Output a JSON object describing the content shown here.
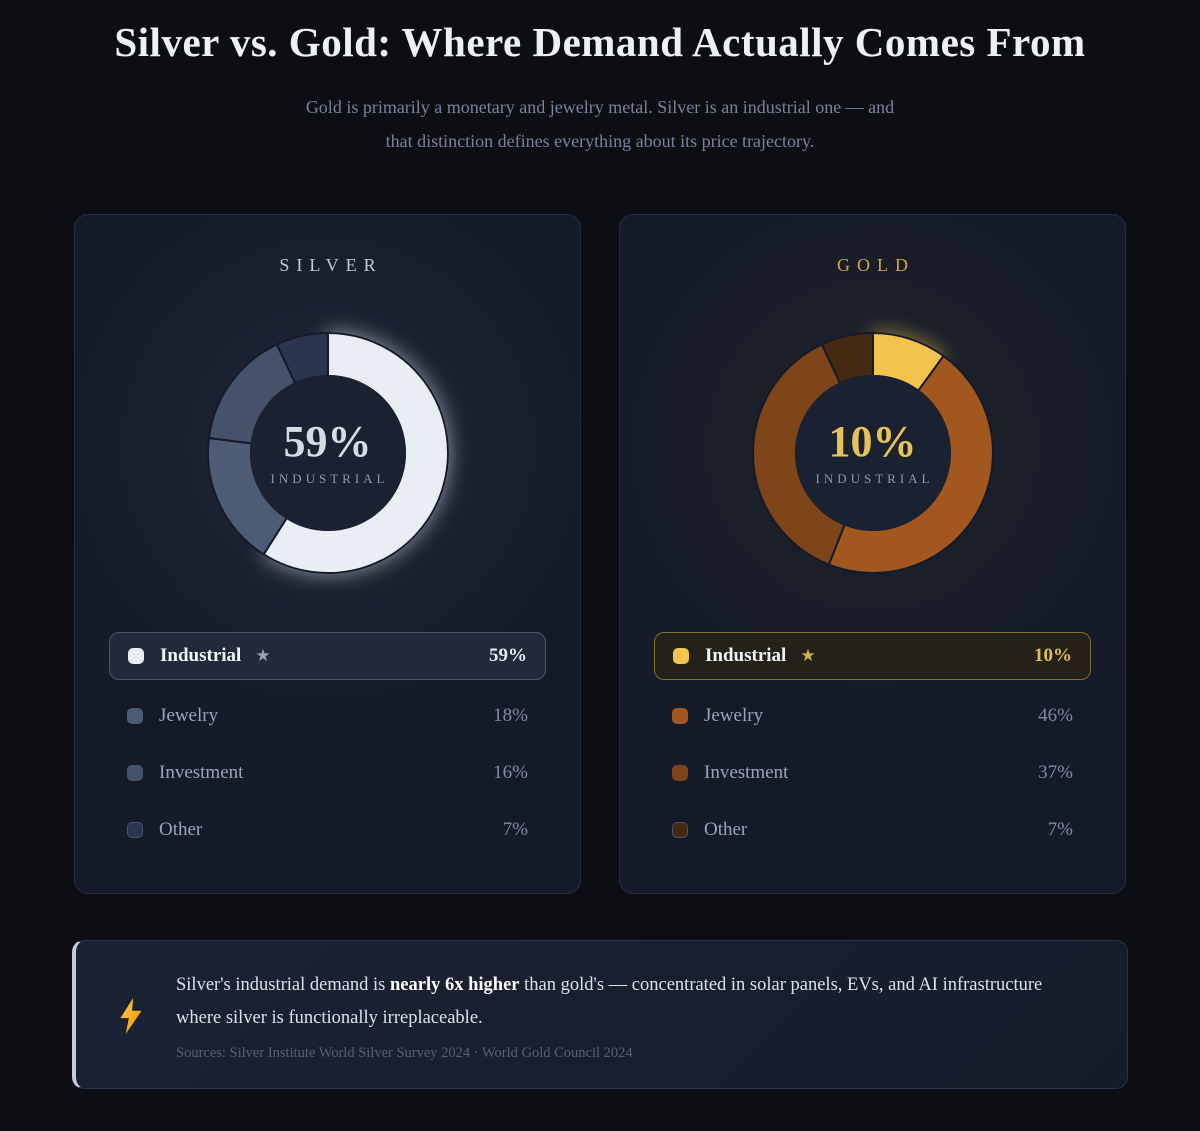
{
  "page": {
    "background": "#0c0e13",
    "title": "Silver vs. Gold: Where Demand Actually Comes From",
    "subtitle_line1": "Gold is primarily a monetary and jewelry metal. Silver is an industrial one — and",
    "subtitle_line2": "that distinction defines everything about its price trajectory."
  },
  "icons": {
    "star": "★",
    "lightning": "lightning-bolt"
  },
  "chart_data": [
    {
      "type": "pie",
      "variant": "donut",
      "title": "SILVER",
      "categories": [
        "Industrial",
        "Jewelry",
        "Investment",
        "Other"
      ],
      "values": [
        59,
        18,
        16,
        7
      ],
      "unit": "%",
      "colors": [
        "#e9eef5",
        "#4e5b74",
        "#45526a",
        "#2b354d"
      ],
      "highlight_index": 0,
      "center_value": "59%",
      "center_label": "INDUSTRIAL",
      "glow_color": "#dde6f2",
      "seam_color": "#141a28",
      "hole_color": "#1a2130",
      "start_angle": "top, clockwise",
      "legend_position": "bottom"
    },
    {
      "type": "pie",
      "variant": "donut",
      "title": "GOLD",
      "categories": [
        "Industrial",
        "Jewelry",
        "Investment",
        "Other"
      ],
      "values": [
        10,
        46,
        37,
        7
      ],
      "unit": "%",
      "colors": [
        "#f2c44e",
        "#a2571e",
        "#7e4518",
        "#452910"
      ],
      "highlight_index": 0,
      "center_value": "10%",
      "center_label": "INDUSTRIAL",
      "glow_color": "#f2c44e",
      "seam_color": "#141a28",
      "hole_color": "#1a2130",
      "start_angle": "top, clockwise",
      "legend_position": "bottom"
    }
  ],
  "cards": [
    {
      "header": "SILVER",
      "header_color": "#c3cad6",
      "center_value": "59%",
      "center_value_color": "#d6dbe3",
      "center_label": "INDUSTRIAL",
      "legend": [
        {
          "label": "Industrial",
          "value": "59%",
          "starred": true
        },
        {
          "label": "Jewelry",
          "value": "18%"
        },
        {
          "label": "Investment",
          "value": "16%"
        },
        {
          "label": "Other",
          "value": "7%"
        }
      ]
    },
    {
      "header": "GOLD",
      "header_color": "#d2a544",
      "center_value": "10%",
      "center_value_color": "#e6c258",
      "center_label": "INDUSTRIAL",
      "legend": [
        {
          "label": "Industrial",
          "value": "10%",
          "starred": true
        },
        {
          "label": "Jewelry",
          "value": "46%"
        },
        {
          "label": "Investment",
          "value": "37%"
        },
        {
          "label": "Other",
          "value": "7%"
        }
      ]
    }
  ],
  "callout": {
    "text_before": "Silver's industrial demand is ",
    "text_bold": "nearly 6x higher",
    "text_after": " than gold's — concentrated in solar panels, EVs, and AI infrastructure where silver is functionally irreplaceable.",
    "sources": "Sources: Silver Institute World Silver Survey 2024 · World Gold Council 2024"
  }
}
